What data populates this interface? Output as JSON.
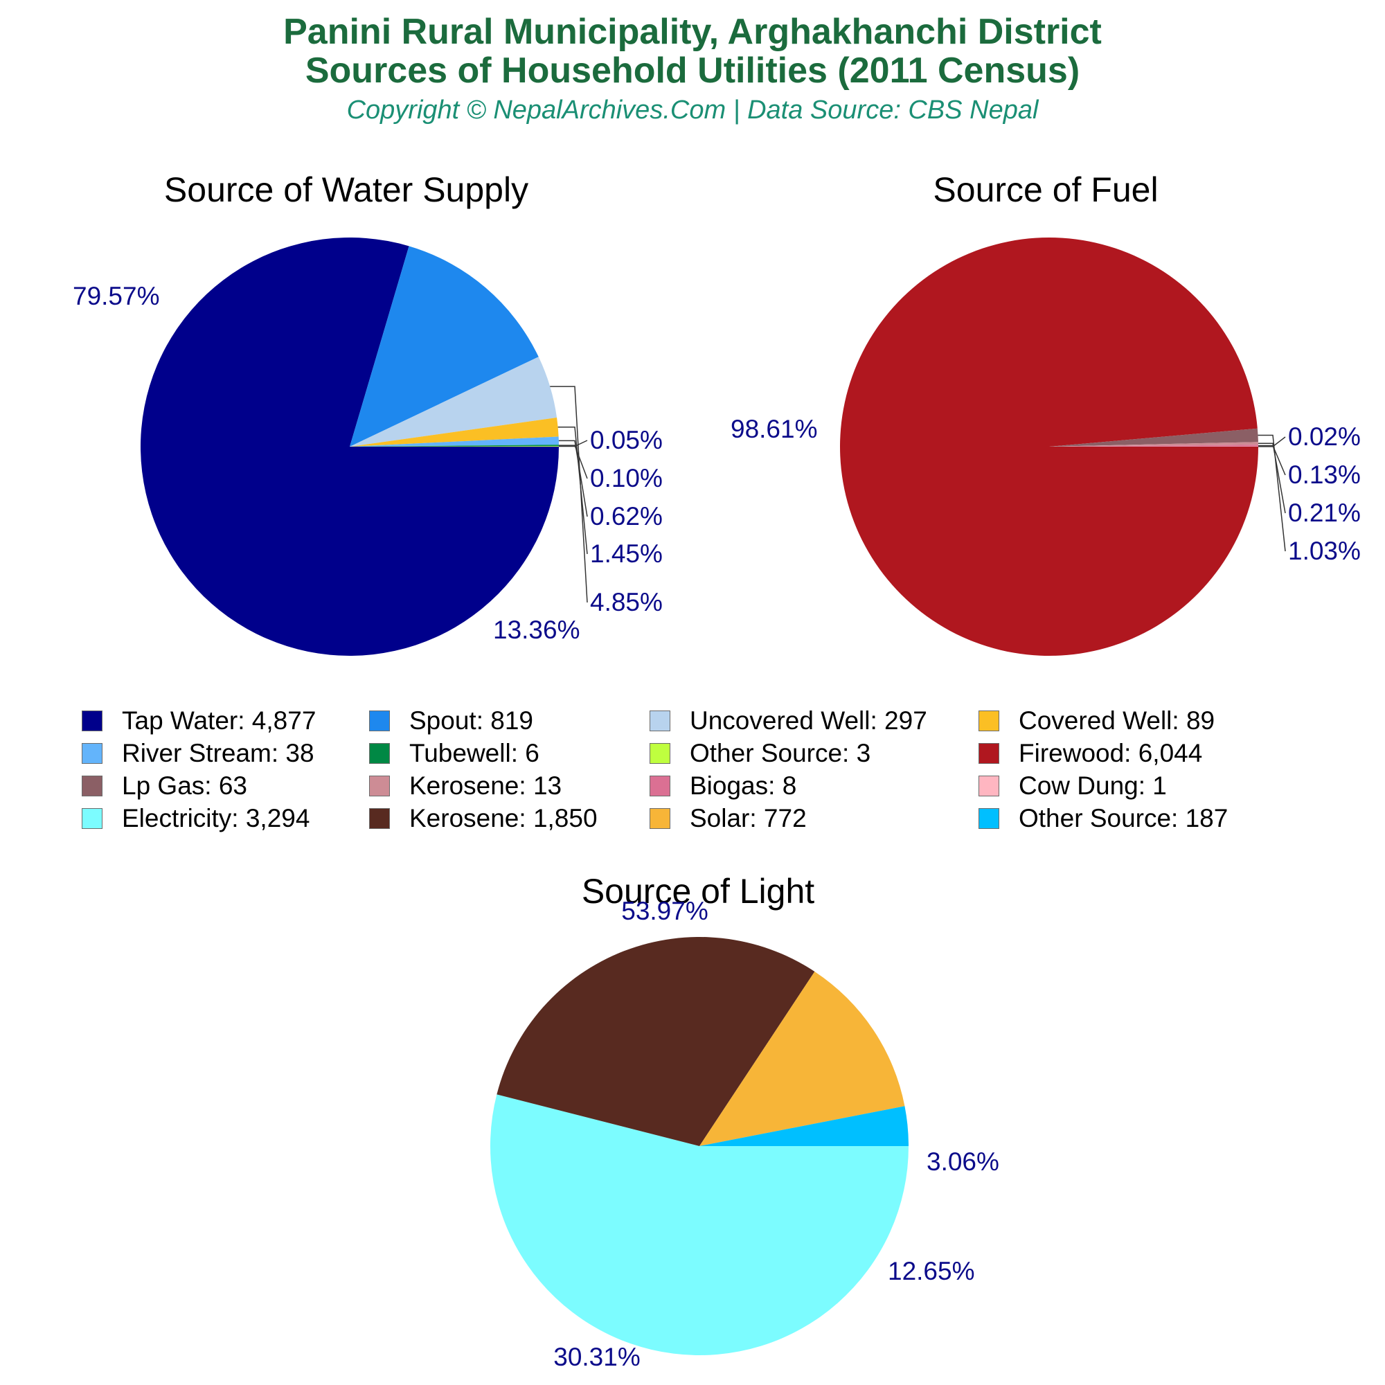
{
  "header": {
    "title_line1": "Panini Rural Municipality, Arghakhanchi District",
    "title_line2": "Sources of Household Utilities (2011 Census)",
    "subtitle": "Copyright © NepalArchives.Com | Data Source: CBS Nepal"
  },
  "chart_data": [
    {
      "type": "pie",
      "title": "Source of Water Supply",
      "start_angle_deg": 0,
      "slices": [
        {
          "label": "Tap Water",
          "value": 4877,
          "display": "Tap Water: 4,877",
          "percent": "79.57%",
          "color": "#00008b"
        },
        {
          "label": "Spout",
          "value": 819,
          "display": "Spout: 819",
          "percent": "13.36%",
          "color": "#1e88ee"
        },
        {
          "label": "Uncovered Well",
          "value": 297,
          "display": "Uncovered Well: 297",
          "percent": "4.85%",
          "color": "#b8d3ee"
        },
        {
          "label": "Covered Well",
          "value": 89,
          "display": "Covered Well: 89",
          "percent": "1.45%",
          "color": "#fbbf24"
        },
        {
          "label": "River Stream",
          "value": 38,
          "display": "River Stream: 38",
          "percent": "0.62%",
          "color": "#63b4fb"
        },
        {
          "label": "Tubewell",
          "value": 6,
          "display": "Tubewell: 6",
          "percent": "0.10%",
          "color": "#008844"
        },
        {
          "label": "Other Source",
          "value": 3,
          "display": "Other Source: 3",
          "percent": "0.05%",
          "color": "#bfff3f"
        }
      ]
    },
    {
      "type": "pie",
      "title": "Source of Fuel",
      "start_angle_deg": 0,
      "slices": [
        {
          "label": "Firewood",
          "value": 6044,
          "display": "Firewood: 6,044",
          "percent": "98.61%",
          "color": "#b0171f"
        },
        {
          "label": "Lp Gas",
          "value": 63,
          "display": "Lp Gas: 63",
          "percent": "1.03%",
          "color": "#8b5f65"
        },
        {
          "label": "Kerosene",
          "value": 13,
          "display": "Kerosene: 13",
          "percent": "0.21%",
          "color": "#cd8c95"
        },
        {
          "label": "Biogas",
          "value": 8,
          "display": "Biogas: 8",
          "percent": "0.13%",
          "color": "#db7093"
        },
        {
          "label": "Cow Dung",
          "value": 1,
          "display": "Cow Dung: 1",
          "percent": "0.02%",
          "color": "#ffb6c1"
        }
      ]
    },
    {
      "type": "pie",
      "title": "Source of Light",
      "start_angle_deg": 0,
      "slices": [
        {
          "label": "Electricity",
          "value": 3294,
          "display": "Electricity: 3,294",
          "percent": "53.97%",
          "color": "#7cfcff"
        },
        {
          "label": "Kerosene",
          "value": 1850,
          "display": "Kerosene: 1,850",
          "percent": "30.31%",
          "color": "#582a20"
        },
        {
          "label": "Solar",
          "value": 772,
          "display": "Solar: 772",
          "percent": "12.65%",
          "color": "#f7b538"
        },
        {
          "label": "Other Source",
          "value": 187,
          "display": "Other Source: 187",
          "percent": "3.06%",
          "color": "#00bfff"
        }
      ]
    }
  ],
  "legend": {
    "items": [
      {
        "text": "Tap Water: 4,877",
        "color": "#00008b"
      },
      {
        "text": "Spout: 819",
        "color": "#1e88ee"
      },
      {
        "text": "Uncovered Well: 297",
        "color": "#b8d3ee"
      },
      {
        "text": "Covered Well: 89",
        "color": "#fbbf24"
      },
      {
        "text": "River Stream: 38",
        "color": "#63b4fb"
      },
      {
        "text": "Tubewell: 6",
        "color": "#008844"
      },
      {
        "text": "Other Source: 3",
        "color": "#bfff3f"
      },
      {
        "text": "Firewood: 6,044",
        "color": "#b0171f"
      },
      {
        "text": "Lp Gas: 63",
        "color": "#8b5f65"
      },
      {
        "text": "Kerosene: 13",
        "color": "#cd8c95"
      },
      {
        "text": "Biogas: 8",
        "color": "#db7093"
      },
      {
        "text": "Cow Dung: 1",
        "color": "#ffb6c1"
      },
      {
        "text": "Electricity: 3,294",
        "color": "#7cfcff"
      },
      {
        "text": "Kerosene: 1,850",
        "color": "#582a20"
      },
      {
        "text": "Solar: 772",
        "color": "#f7b538"
      },
      {
        "text": "Other Source: 187",
        "color": "#00bfff"
      }
    ]
  }
}
